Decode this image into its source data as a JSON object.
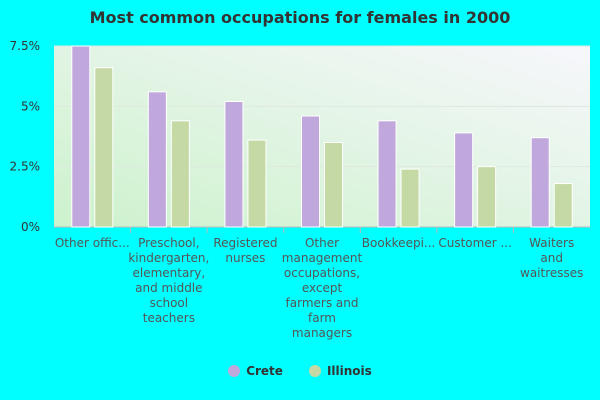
{
  "chart_data": {
    "type": "bar",
    "title": "Most common occupations for females in 2000",
    "categories": [
      "Other offic...",
      "Preschool, kindergarten, elementary, and middle school teachers",
      "Registered nurses",
      "Other management occupations, except farmers and farm managers",
      "Bookkeepi...",
      "Customer ...",
      "Waiters and waitresses"
    ],
    "category_lines": [
      [
        "Other offic..."
      ],
      [
        "Preschool,",
        "kindergarten,",
        "elementary,",
        "and middle",
        "school",
        "teachers"
      ],
      [
        "Registered",
        "nurses"
      ],
      [
        "Other",
        "management",
        "occupations,",
        "except",
        "farmers and",
        "farm",
        "managers"
      ],
      [
        "Bookkeepi..."
      ],
      [
        "Customer ..."
      ],
      [
        "Waiters",
        "and",
        "waitresses"
      ]
    ],
    "series": [
      {
        "name": "Crete",
        "color": "#c0a8dc",
        "values": [
          7.5,
          5.6,
          5.2,
          4.6,
          4.4,
          3.9,
          3.7
        ]
      },
      {
        "name": "Illinois",
        "color": "#c4d9a4",
        "values": [
          6.6,
          4.4,
          3.6,
          3.5,
          2.4,
          2.5,
          1.8
        ]
      }
    ],
    "ylim": [
      0,
      7.5
    ],
    "yticks": [
      0,
      2.5,
      5,
      7.5
    ],
    "ytick_labels": [
      "0%",
      "2.5%",
      "5%",
      "7.5%"
    ],
    "xlabel": "",
    "ylabel": "",
    "grid": true,
    "legend": "bottom"
  }
}
